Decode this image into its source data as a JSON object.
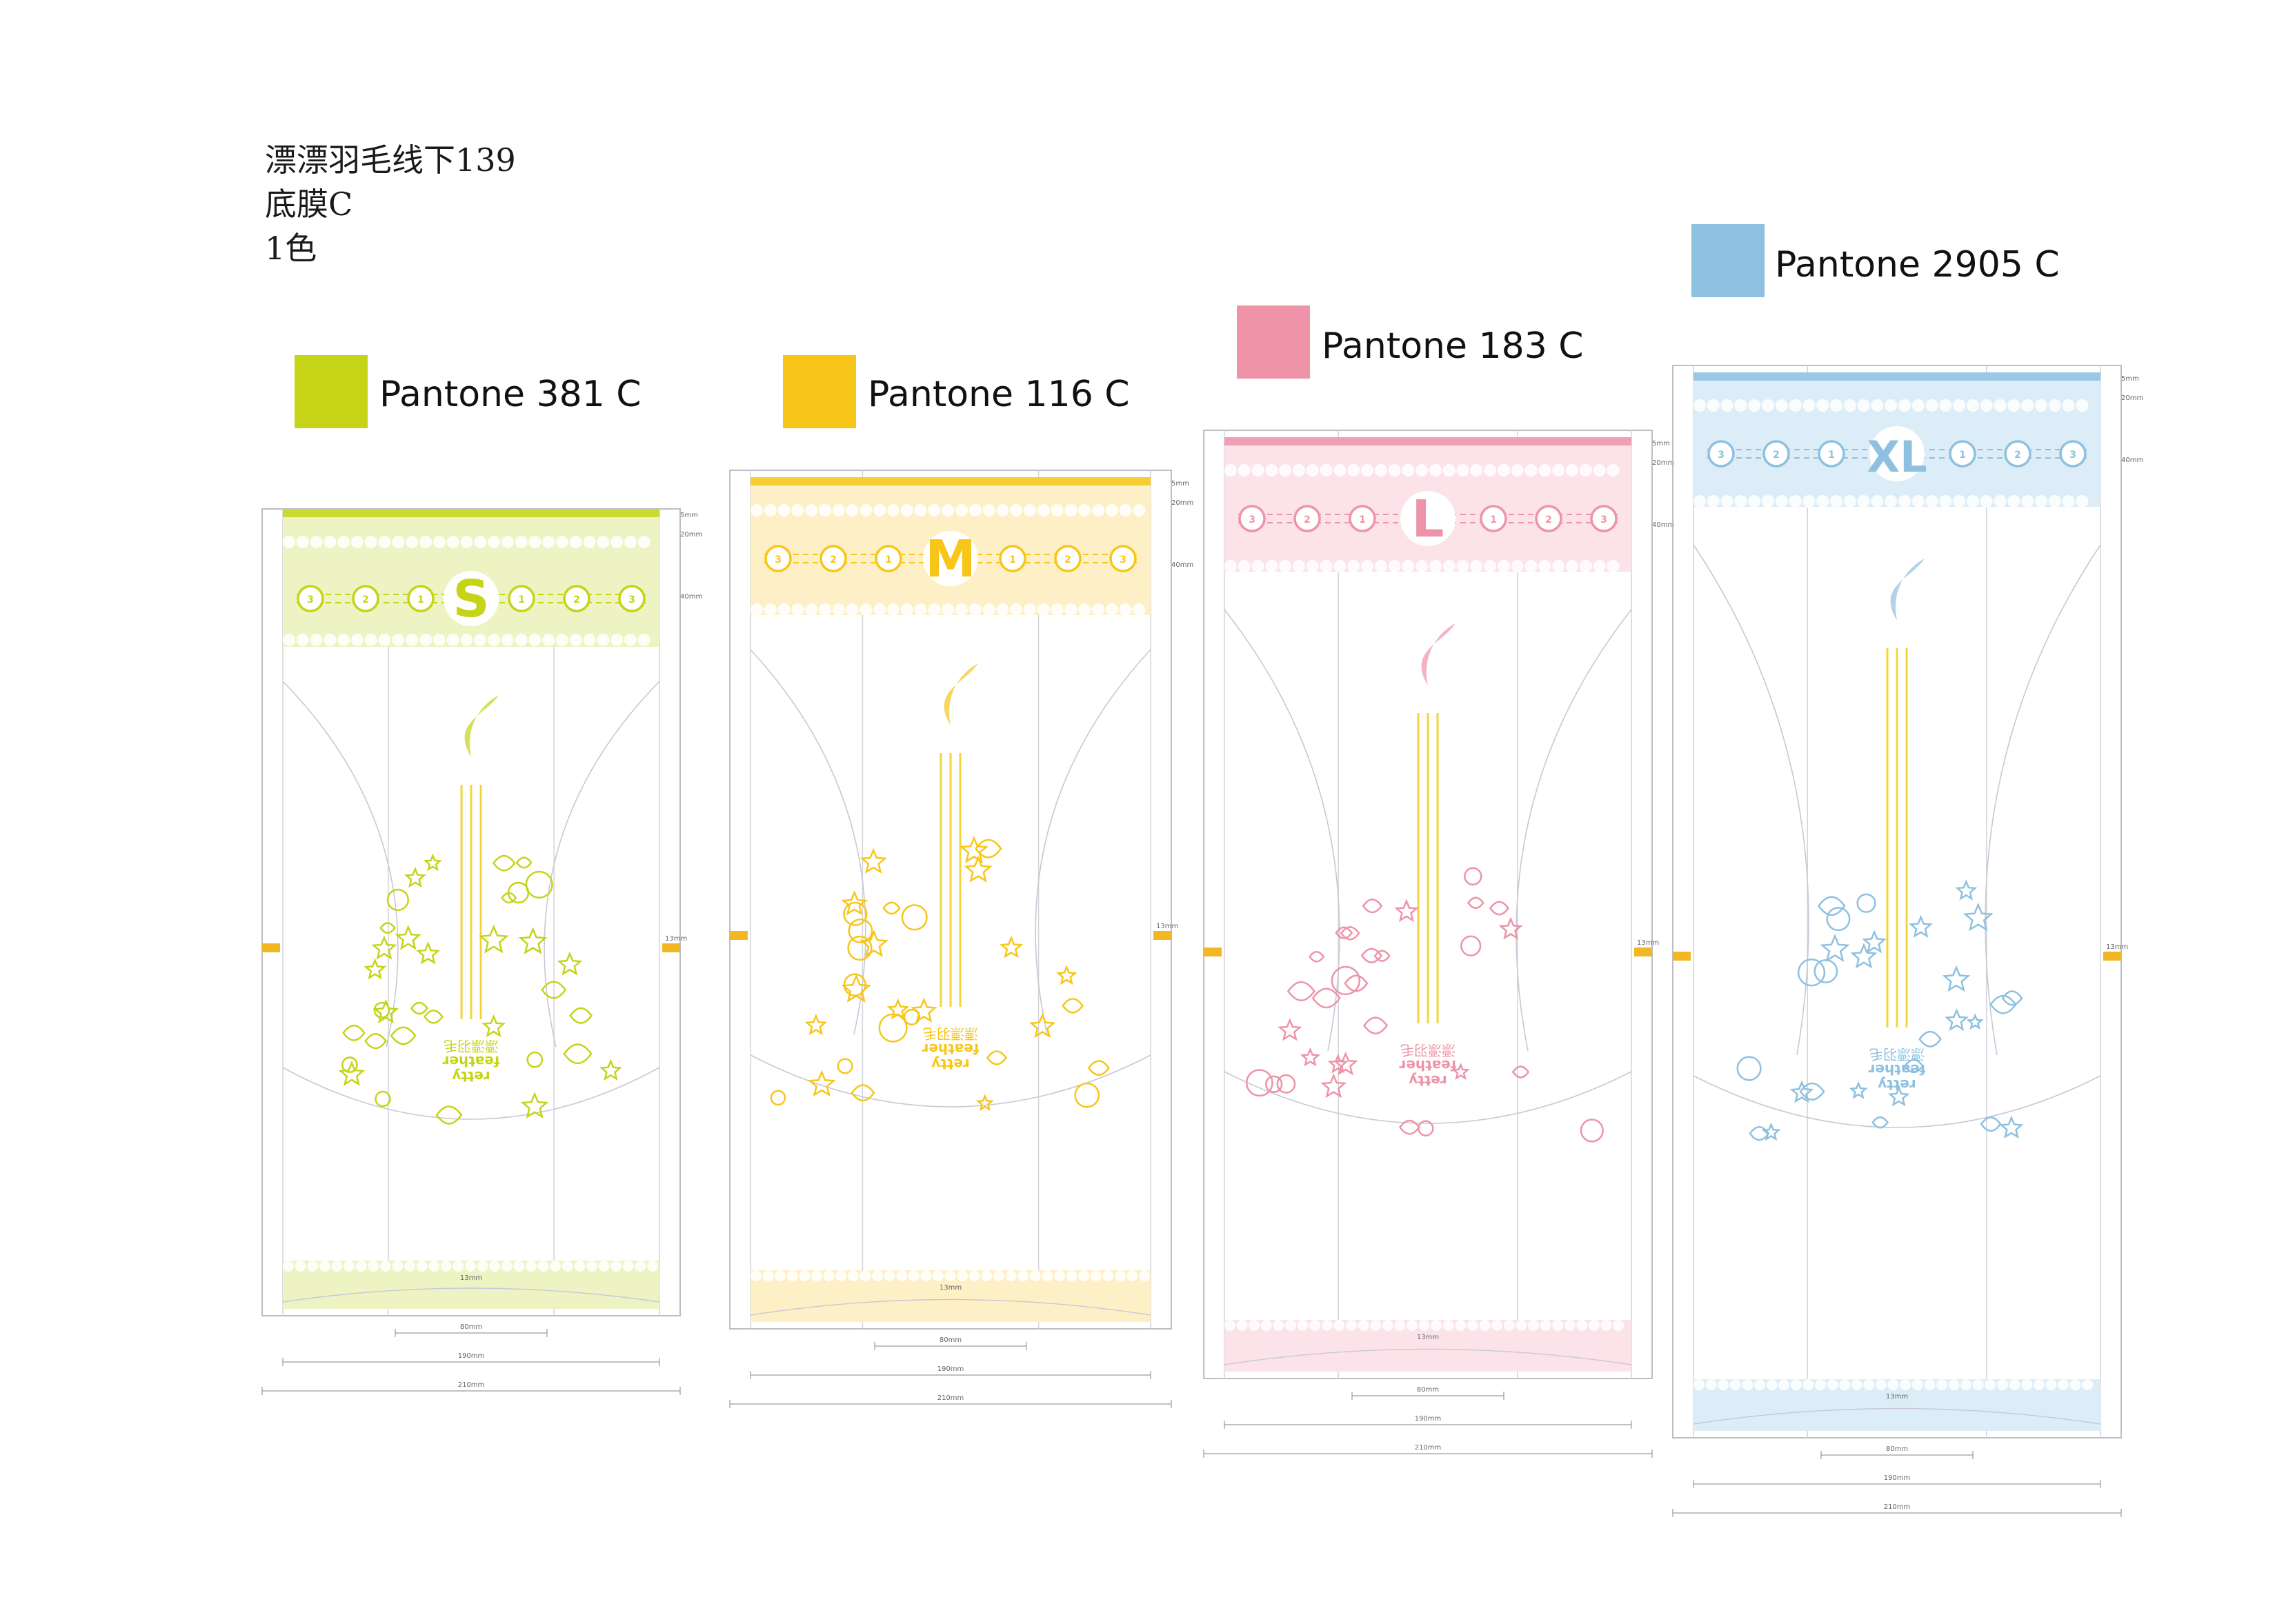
{
  "header": {
    "line1": "漂漂羽毛线下139",
    "line2": "底膜C",
    "line3": "1色"
  },
  "variants": [
    {
      "id": "s",
      "size": "S",
      "pantone": "Pantone 381 C",
      "color": "#C5D416",
      "tint": "#EEF3C4",
      "motif": "sea"
    },
    {
      "id": "m",
      "size": "M",
      "pantone": "Pantone 116 C",
      "color": "#F7C619",
      "tint": "#FDF0C6",
      "motif": "leaves"
    },
    {
      "id": "l",
      "size": "L",
      "pantone": "Pantone 183 C",
      "color": "#EE93A8",
      "tint": "#FBE3E9",
      "motif": "forest"
    },
    {
      "id": "xl",
      "size": "XL",
      "pantone": "Pantone 2905 C",
      "color": "#8EC1E0",
      "tint": "#DDEDF7",
      "motif": "space"
    }
  ],
  "panel_labels": {
    "sequence": [
      "3",
      "2",
      "1",
      "1",
      "2",
      "3"
    ],
    "brand_line1": "retty",
    "brand_line2": "feather",
    "brand_cn": "漂漂羽毛",
    "dim_top": [
      "5mm",
      "20mm",
      "40mm"
    ],
    "dim_side": "13mm",
    "dim_bottom_strip": "13mm",
    "dim_widths": [
      "80mm",
      "190mm",
      "210mm"
    ]
  },
  "accent_marker_color": "#F2B824",
  "stripe_color": "#F5D43A"
}
